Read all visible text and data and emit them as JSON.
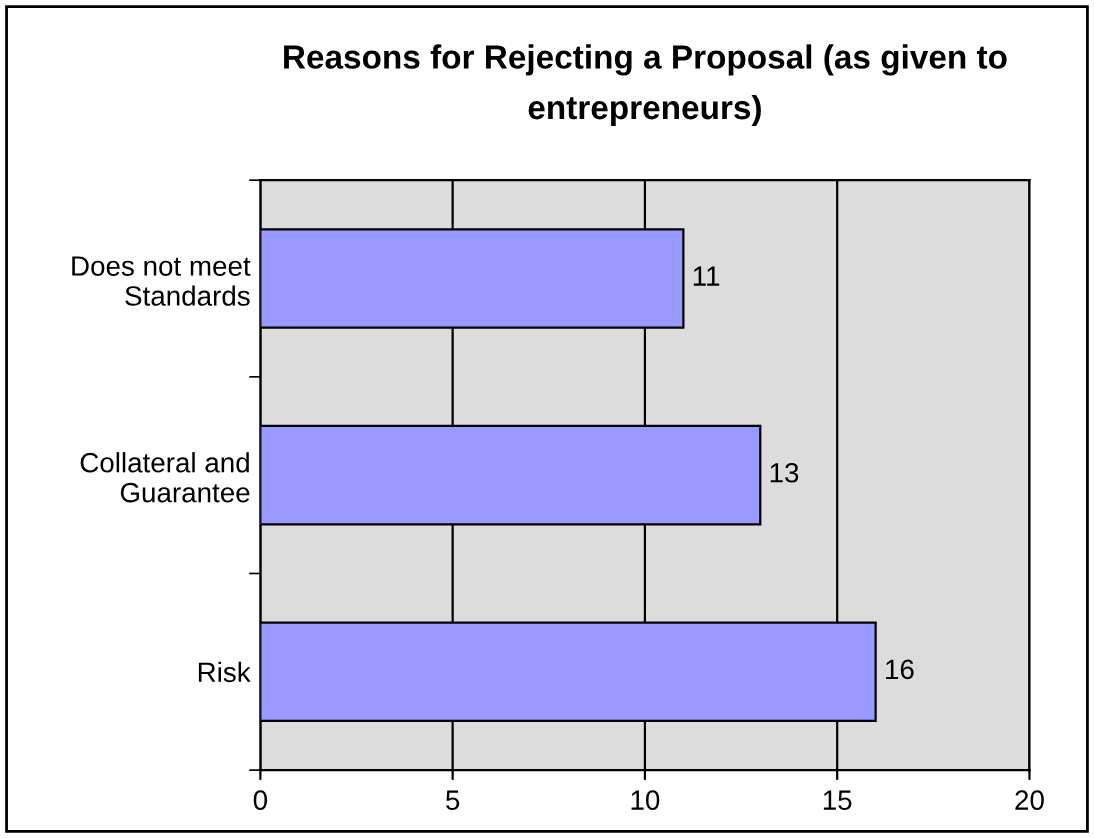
{
  "chart_data": {
    "type": "bar",
    "orientation": "horizontal",
    "title": "Reasons for Rejecting a Proposal (as given to\nentrepreneurs)",
    "categories": [
      "Does not meet\nStandards",
      "Collateral and\nGuarantee",
      "Risk"
    ],
    "values": [
      11,
      13,
      16
    ],
    "color": "#9999ff",
    "xlim": [
      0,
      20
    ],
    "xticks": [
      0,
      5,
      10,
      15,
      20
    ],
    "grid": "x",
    "data_labels": true
  }
}
